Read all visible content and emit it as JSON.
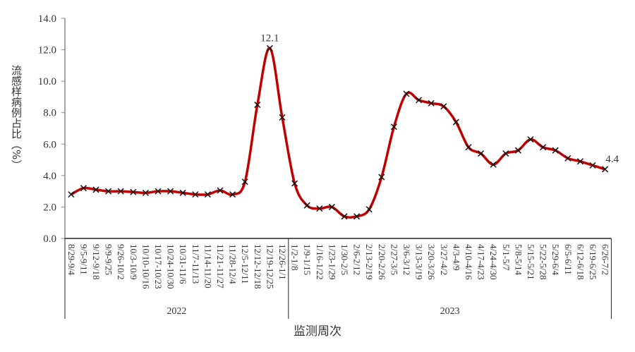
{
  "chart_data": {
    "type": "line",
    "title": "",
    "xlabel": "监测周次",
    "ylabel": "流感样病例占比（%）",
    "ylim": [
      0,
      14
    ],
    "yticks": [
      "0.0",
      "2.0",
      "4.0",
      "6.0",
      "8.0",
      "10.0",
      "12.0",
      "14.0"
    ],
    "grid": false,
    "smooth": true,
    "marker": "x",
    "line_color": "#c00000",
    "categories": [
      "8/29-9/4",
      "9/5-9/11",
      "9/12-9/18",
      "9/9-9/25",
      "9/26-10/2",
      "10/3-10/9",
      "10/10-10/16",
      "10/17-10/23",
      "10/24-10/30",
      "10/31-11/6",
      "11/7-11/13",
      "11/14-11/20",
      "11/21-11/27",
      "11/28-12/4",
      "12/5-12/11",
      "12/12-12/18",
      "12/19-12/25",
      "12/26-1/1",
      "1/2-1/8",
      "1/9-1/15",
      "1/16-1/22",
      "1/23-1/29",
      "1/30-2/5",
      "2/6-2/12",
      "2/13-2/19",
      "2/20-2/26",
      "2/27-3/5",
      "3/6-3/12",
      "3/13-3/19",
      "3/20-3/26",
      "3/27-4/2",
      "4/3-4/9",
      "4/10-4/16",
      "4/17-4/23",
      "4/24-4/30",
      "5/1-5/7",
      "5/8-5/14",
      "5/15-5/21",
      "5/22-5/28",
      "5/29-6/4",
      "6/5-6/11",
      "6/12-6/18",
      "6/19-6/25",
      "6/26-7/2"
    ],
    "groups": [
      {
        "label": "2022",
        "count": 18
      },
      {
        "label": "2023",
        "count": 26
      }
    ],
    "values": [
      2.8,
      3.2,
      3.1,
      3.0,
      3.0,
      2.95,
      2.9,
      3.0,
      3.0,
      2.9,
      2.8,
      2.8,
      3.05,
      2.8,
      3.6,
      8.5,
      12.1,
      7.7,
      3.5,
      2.1,
      1.9,
      2.0,
      1.4,
      1.4,
      1.85,
      3.9,
      7.1,
      9.2,
      8.8,
      8.6,
      8.4,
      7.4,
      5.8,
      5.4,
      4.7,
      5.4,
      5.6,
      6.3,
      5.8,
      5.6,
      5.1,
      4.9,
      4.65,
      4.4
    ],
    "data_labels": [
      {
        "index": 16,
        "text": "12.1"
      },
      {
        "index": 43,
        "text": "4.4"
      }
    ]
  }
}
